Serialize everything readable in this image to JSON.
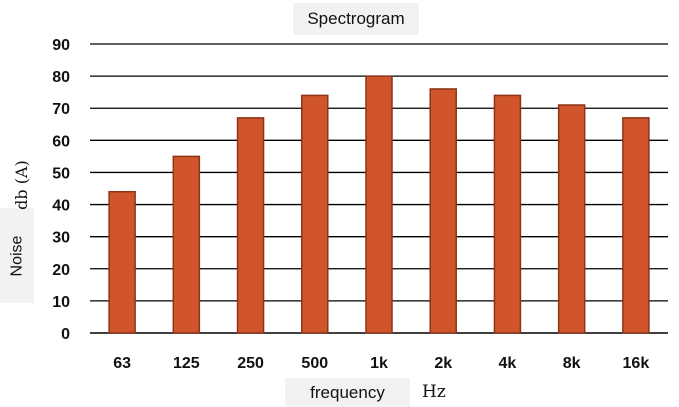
{
  "chart_data": {
    "type": "bar",
    "title": "Spectrogram",
    "xlabel": "frequency",
    "xunit": "Hz",
    "ylabel": "Noise",
    "yunit": "db (A)",
    "categories": [
      "63",
      "125",
      "250",
      "500",
      "1k",
      "2k",
      "4k",
      "8k",
      "16k"
    ],
    "values": [
      44,
      55,
      67,
      74,
      80,
      76,
      74,
      71,
      67
    ],
    "ylim": [
      0,
      90
    ],
    "yticks": [
      0,
      10,
      20,
      30,
      40,
      50,
      60,
      70,
      80,
      90
    ],
    "grid": true,
    "legend": "none",
    "bar_color": "#d1552b",
    "bar_edge_color": "#8a3418"
  }
}
